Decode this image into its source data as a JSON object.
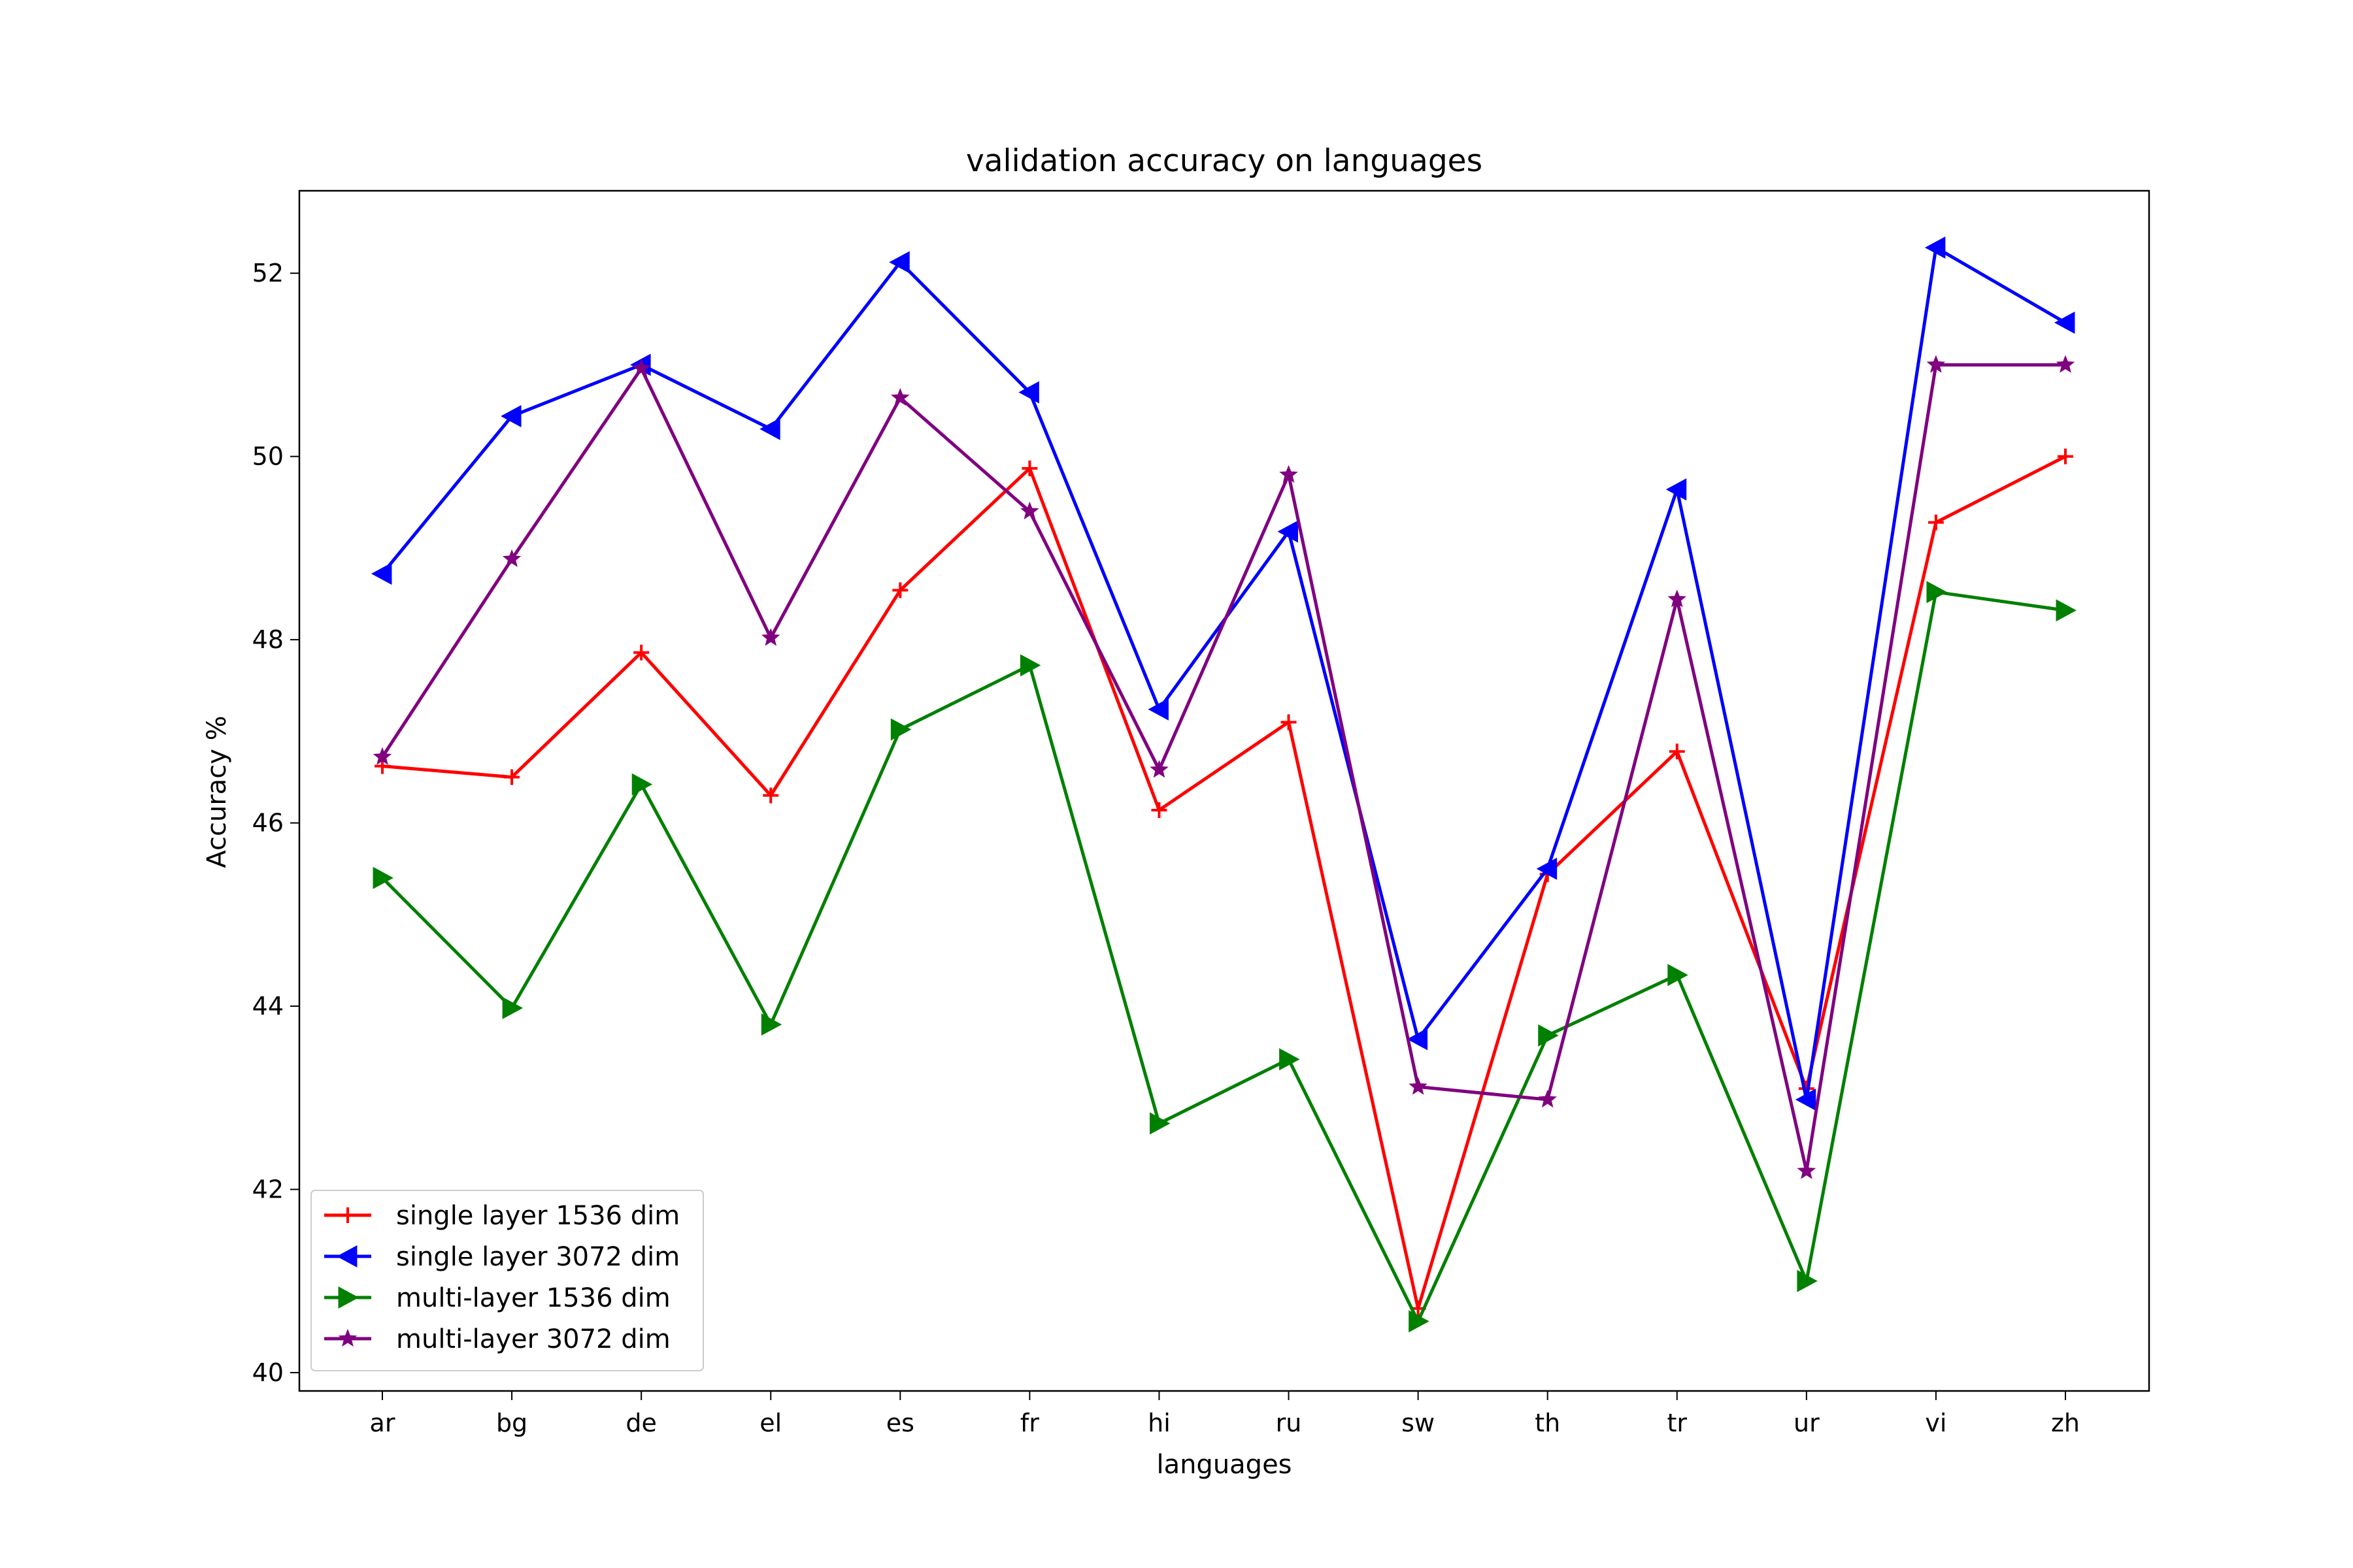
{
  "chart_data": {
    "type": "line",
    "title": "validation accuracy on languages",
    "xlabel": "languages",
    "ylabel": "Accuracy %",
    "categories": [
      "ar",
      "bg",
      "de",
      "el",
      "es",
      "fr",
      "hi",
      "ru",
      "sw",
      "th",
      "tr",
      "ur",
      "vi",
      "zh"
    ],
    "ylim": [
      39.8,
      52.9
    ],
    "yticks": [
      40,
      42,
      44,
      46,
      48,
      50,
      52
    ],
    "grid": false,
    "legend_position": "lower-left",
    "series": [
      {
        "name": "single layer 1536 dim",
        "color": "#ff0000",
        "marker": "plus",
        "values": [
          46.62,
          46.5,
          47.86,
          46.3,
          48.54,
          49.87,
          46.14,
          47.1,
          40.7,
          45.44,
          46.78,
          43.1,
          49.28,
          50.0
        ]
      },
      {
        "name": "single layer 3072 dim",
        "color": "#0000ff",
        "marker": "triangle-left",
        "values": [
          48.72,
          50.44,
          51.0,
          50.3,
          52.12,
          50.7,
          47.24,
          49.18,
          43.64,
          45.5,
          49.64,
          42.98,
          52.28,
          51.46
        ]
      },
      {
        "name": "multi-layer 1536 dim",
        "color": "#008000",
        "marker": "triangle-right",
        "values": [
          45.4,
          43.98,
          46.42,
          43.8,
          47.02,
          47.72,
          42.72,
          43.42,
          40.56,
          43.68,
          44.34,
          41.0,
          48.52,
          48.32
        ]
      },
      {
        "name": "multi-layer 3072 dim",
        "color": "#800080",
        "marker": "star",
        "values": [
          46.72,
          48.88,
          50.96,
          48.02,
          50.64,
          49.4,
          46.58,
          49.8,
          43.12,
          42.98,
          48.44,
          42.2,
          51.0,
          51.0
        ]
      }
    ]
  }
}
